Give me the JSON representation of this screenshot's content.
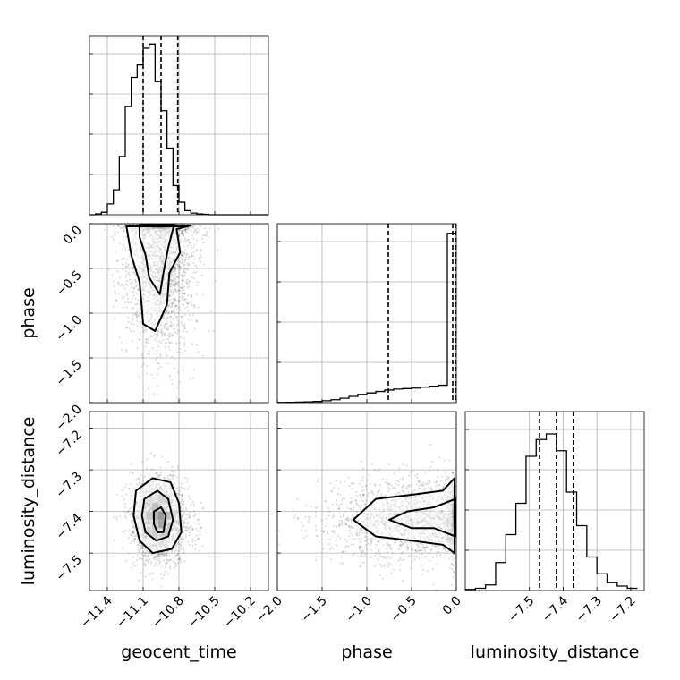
{
  "chart_data": {
    "type": "corner",
    "parameters": [
      "geocent_time",
      "phase",
      "luminosity_distance"
    ],
    "grid": true,
    "histograms": [
      {
        "parameter": "geocent_time",
        "bins": [
          -11.55,
          -11.5,
          -11.45,
          -11.4,
          -11.35,
          -11.3,
          -11.25,
          -11.2,
          -11.15,
          -11.1,
          -11.05,
          -11.0,
          -10.95,
          -10.9,
          -10.85,
          -10.8,
          -10.75,
          -10.7,
          -10.65,
          -10.6,
          -10.55,
          -10.5,
          -10.45,
          -10.4,
          -10.35,
          -10.3,
          -10.25,
          -10.2,
          -10.15,
          -10.1,
          -10.05
        ],
        "counts": [
          0,
          1,
          3,
          13,
          30,
          70,
          130,
          165,
          180,
          200,
          205,
          160,
          125,
          80,
          35,
          15,
          5,
          2,
          1,
          0.5,
          0,
          0,
          0,
          0,
          0,
          0,
          0,
          0,
          0,
          0
        ],
        "ymax": 215,
        "xlim": [
          -11.55,
          -10.05
        ],
        "quantiles": [
          -11.1,
          -10.95,
          -10.81
        ]
      },
      {
        "parameter": "phase",
        "bins": [
          -2.0,
          -1.9,
          -1.8,
          -1.7,
          -1.6,
          -1.5,
          -1.4,
          -1.3,
          -1.2,
          -1.1,
          -1.0,
          -0.9,
          -0.8,
          -0.7,
          -0.6,
          -0.5,
          -0.4,
          -0.3,
          -0.2,
          -0.1,
          0.0
        ],
        "counts": [
          0.2,
          0.3,
          0.5,
          0.8,
          1.2,
          2,
          3,
          4.5,
          6.5,
          8.5,
          10,
          11.5,
          13,
          14,
          14.5,
          15,
          16,
          17,
          18,
          175
        ],
        "ymax": 185,
        "xlim": [
          -2.0,
          0.0
        ],
        "quantiles": [
          -0.76,
          -0.04,
          -0.01
        ]
      },
      {
        "parameter": "luminosity_distance",
        "bins": [
          -7.69,
          -7.66,
          -7.63,
          -7.6,
          -7.57,
          -7.54,
          -7.51,
          -7.48,
          -7.45,
          -7.42,
          -7.39,
          -7.36,
          -7.33,
          -7.3,
          -7.27,
          -7.24,
          -7.21,
          -7.18
        ],
        "counts": [
          1,
          2,
          5,
          25,
          50,
          78,
          120,
          135,
          140,
          125,
          88,
          58,
          30,
          15,
          7,
          4,
          2
        ],
        "ymax": 160,
        "xlim": [
          -7.69,
          -7.16
        ],
        "quantiles": [
          -7.47,
          -7.42,
          -7.37
        ]
      }
    ],
    "joint": [
      {
        "x": "geocent_time",
        "y": "phase",
        "xlim": [
          -11.55,
          -10.05
        ],
        "ylim": [
          -2.0,
          0.0
        ],
        "scatter": {
          "mx": -10.96,
          "sx": 0.15,
          "my": -0.45,
          "sy": 0.5,
          "n": 2000,
          "yfold": 0.0
        },
        "contours": [
          [
            [
              -11.24,
              -0.03
            ],
            [
              -11.2,
              -0.35
            ],
            [
              -11.13,
              -0.65
            ],
            [
              -11.11,
              -0.95
            ],
            [
              -11.1,
              -1.12
            ],
            [
              -11.0,
              -1.2
            ],
            [
              -10.95,
              -1.05
            ],
            [
              -10.9,
              -0.9
            ],
            [
              -10.88,
              -0.55
            ],
            [
              -10.79,
              -0.32
            ],
            [
              -10.82,
              -0.06
            ],
            [
              -10.7,
              -0.02
            ],
            [
              -10.78,
              -0.03
            ]
          ],
          [
            [
              -11.13,
              -0.01
            ],
            [
              -11.13,
              -0.15
            ],
            [
              -11.08,
              -0.35
            ],
            [
              -11.05,
              -0.6
            ],
            [
              -10.96,
              -0.79
            ],
            [
              -10.93,
              -0.55
            ],
            [
              -10.89,
              -0.27
            ],
            [
              -10.86,
              -0.11
            ],
            [
              -10.84,
              -0.01
            ]
          ]
        ],
        "density_cells": [
          {
            "x": -11.0,
            "y": -0.01,
            "v": 0.9
          },
          {
            "x": -10.95,
            "y": -0.01,
            "v": 1.0
          },
          {
            "x": -10.9,
            "y": -0.01,
            "v": 0.75
          },
          {
            "x": -11.05,
            "y": -0.01,
            "v": 0.45
          },
          {
            "x": -10.85,
            "y": -0.01,
            "v": 0.4
          },
          {
            "x": -11.1,
            "y": -0.01,
            "v": 0.2
          },
          {
            "x": -10.8,
            "y": -0.01,
            "v": 0.2
          }
        ]
      },
      {
        "x": "geocent_time",
        "y": "luminosity_distance",
        "xlim": [
          -11.55,
          -10.05
        ],
        "ylim": [
          -7.59,
          -7.16
        ],
        "scatter": {
          "mx": -10.96,
          "sx": 0.12,
          "my": -7.42,
          "sy": 0.05,
          "n": 2000
        },
        "contours": [
          [
            [
              -11.16,
              -7.35
            ],
            [
              -11.02,
              -7.32
            ],
            [
              -10.87,
              -7.33
            ],
            [
              -10.8,
              -7.38
            ],
            [
              -10.78,
              -7.45
            ],
            [
              -10.86,
              -7.49
            ],
            [
              -11.02,
              -7.5
            ],
            [
              -11.13,
              -7.47
            ],
            [
              -11.18,
              -7.41
            ]
          ],
          [
            [
              -11.09,
              -7.37
            ],
            [
              -10.98,
              -7.35
            ],
            [
              -10.89,
              -7.37
            ],
            [
              -10.85,
              -7.42
            ],
            [
              -10.89,
              -7.46
            ],
            [
              -10.99,
              -7.47
            ],
            [
              -11.08,
              -7.45
            ],
            [
              -11.11,
              -7.41
            ]
          ],
          [
            [
              -11.01,
              -7.4
            ],
            [
              -10.95,
              -7.39
            ],
            [
              -10.91,
              -7.41
            ],
            [
              -10.93,
              -7.45
            ],
            [
              -10.98,
              -7.45
            ],
            [
              -11.01,
              -7.43
            ]
          ]
        ],
        "density_cells": [
          {
            "x": -10.95,
            "y": -7.41,
            "v": 1.0
          },
          {
            "x": -10.95,
            "y": -7.43,
            "v": 0.85
          },
          {
            "x": -11.0,
            "y": -7.41,
            "v": 0.75
          },
          {
            "x": -10.9,
            "y": -7.41,
            "v": 0.6
          },
          {
            "x": -11.0,
            "y": -7.39,
            "v": 0.55
          },
          {
            "x": -11.05,
            "y": -7.41,
            "v": 0.45
          },
          {
            "x": -10.9,
            "y": -7.45,
            "v": 0.45
          },
          {
            "x": -11.0,
            "y": -7.45,
            "v": 0.4
          },
          {
            "x": -10.95,
            "y": -7.37,
            "v": 0.35
          },
          {
            "x": -11.05,
            "y": -7.45,
            "v": 0.3
          },
          {
            "x": -10.85,
            "y": -7.41,
            "v": 0.3
          },
          {
            "x": -11.05,
            "y": -7.37,
            "v": 0.25
          },
          {
            "x": -10.9,
            "y": -7.37,
            "v": 0.3
          },
          {
            "x": -11.1,
            "y": -7.41,
            "v": 0.15
          },
          {
            "x": -10.95,
            "y": -7.47,
            "v": 0.2
          }
        ]
      },
      {
        "x": "phase",
        "y": "luminosity_distance",
        "xlim": [
          -2.0,
          0.0
        ],
        "ylim": [
          -7.59,
          -7.16
        ],
        "scatter": {
          "mx": -0.45,
          "sx": 0.5,
          "my": -7.42,
          "sy": 0.05,
          "n": 2000,
          "xfold": 0.0
        },
        "contours": [
          [
            [
              -0.02,
              -7.32
            ],
            [
              -0.15,
              -7.35
            ],
            [
              -0.5,
              -7.36
            ],
            [
              -0.9,
              -7.37
            ],
            [
              -1.15,
              -7.42
            ],
            [
              -0.9,
              -7.46
            ],
            [
              -0.5,
              -7.47
            ],
            [
              -0.15,
              -7.48
            ],
            [
              -0.02,
              -7.5
            ]
          ],
          [
            [
              -0.01,
              -7.37
            ],
            [
              -0.25,
              -7.39
            ],
            [
              -0.55,
              -7.4
            ],
            [
              -0.75,
              -7.42
            ],
            [
              -0.5,
              -7.44
            ],
            [
              -0.25,
              -7.44
            ],
            [
              -0.01,
              -7.46
            ]
          ]
        ],
        "density_cells": [
          {
            "x": -0.01,
            "y": -7.41,
            "v": 1.0
          },
          {
            "x": -0.01,
            "y": -7.43,
            "v": 0.85
          },
          {
            "x": -0.01,
            "y": -7.39,
            "v": 0.7
          },
          {
            "x": -0.01,
            "y": -7.45,
            "v": 0.45
          },
          {
            "x": -0.01,
            "y": -7.37,
            "v": 0.4
          },
          {
            "x": -0.01,
            "y": -7.35,
            "v": 0.15
          },
          {
            "x": -0.01,
            "y": -7.47,
            "v": 0.2
          }
        ]
      }
    ],
    "ticks": {
      "geocent_time": [
        "−11.4",
        "−11.1",
        "−10.8",
        "−10.5",
        "−10.2"
      ],
      "geocent_time_values": [
        -11.4,
        -11.1,
        -10.8,
        -10.5,
        -10.2
      ],
      "phase": [
        "−2.0",
        "−1.5",
        "−1.0",
        "−0.5",
        "0.0"
      ],
      "phase_values": [
        -2.0,
        -1.5,
        -1.0,
        -0.5,
        0.0
      ],
      "luminosity_distance": [
        "−7.5",
        "−7.4",
        "−7.3",
        "−7.2"
      ],
      "luminosity_distance_values": [
        -7.5,
        -7.4,
        -7.3,
        -7.2
      ]
    },
    "axis_labels": {
      "bottom": [
        "geocent_time",
        "phase",
        "luminosity_distance"
      ],
      "left": [
        "phase",
        "luminosity_distance"
      ]
    }
  }
}
